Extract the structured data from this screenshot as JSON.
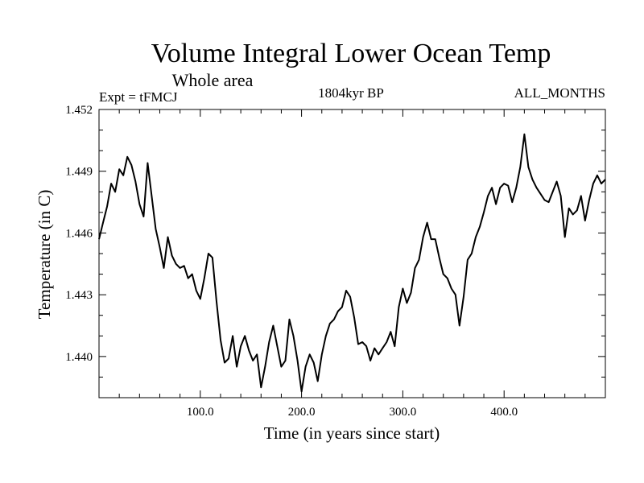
{
  "chart_data": {
    "type": "line",
    "title": "Volume Integral Lower Ocean Temp",
    "subtitle": "Whole area",
    "left_label": "Expt = tFMCJ",
    "center_label": "1804kyr BP",
    "right_label": "ALL_MONTHS",
    "xlabel": "Time (in years since start)",
    "ylabel": "Temperature (in C)",
    "xlim": [
      0,
      500
    ],
    "ylim": [
      1.438,
      1.452
    ],
    "x_ticks": [
      100,
      200,
      300,
      400
    ],
    "x_tick_labels": [
      "100.0",
      "200.0",
      "300.0",
      "400.0"
    ],
    "y_ticks": [
      1.44,
      1.443,
      1.446,
      1.449,
      1.452
    ],
    "y_tick_labels": [
      "1.440",
      "1.443",
      "1.446",
      "1.449",
      "1.452"
    ],
    "grid": false,
    "series": [
      {
        "name": "Volume Integral Lower Ocean Temp",
        "x": [
          0,
          4,
          8,
          12,
          16,
          20,
          24,
          28,
          32,
          36,
          40,
          44,
          48,
          52,
          56,
          60,
          64,
          68,
          72,
          76,
          80,
          84,
          88,
          92,
          96,
          100,
          104,
          108,
          112,
          116,
          120,
          124,
          128,
          132,
          136,
          140,
          144,
          148,
          152,
          156,
          160,
          164,
          168,
          172,
          176,
          180,
          184,
          188,
          192,
          196,
          200,
          204,
          208,
          212,
          216,
          220,
          224,
          228,
          232,
          236,
          240,
          244,
          248,
          252,
          256,
          260,
          264,
          268,
          272,
          276,
          280,
          284,
          288,
          292,
          296,
          300,
          304,
          308,
          312,
          316,
          320,
          324,
          328,
          332,
          336,
          340,
          344,
          348,
          352,
          356,
          360,
          364,
          368,
          372,
          376,
          380,
          384,
          388,
          392,
          396,
          400,
          404,
          408,
          412,
          416,
          420,
          424,
          428,
          432,
          436,
          440,
          444,
          448,
          452,
          456,
          460,
          464,
          468,
          472,
          476,
          480,
          484,
          488,
          492,
          496,
          500
        ],
        "values": [
          1.4457,
          1.4465,
          1.4473,
          1.4484,
          1.448,
          1.4491,
          1.4488,
          1.4497,
          1.4493,
          1.4485,
          1.4474,
          1.4468,
          1.4494,
          1.4478,
          1.4462,
          1.4453,
          1.4443,
          1.4458,
          1.4449,
          1.4445,
          1.4443,
          1.4444,
          1.4438,
          1.444,
          1.4432,
          1.4428,
          1.4438,
          1.445,
          1.4448,
          1.4427,
          1.4408,
          1.4397,
          1.4399,
          1.441,
          1.4395,
          1.4405,
          1.441,
          1.4403,
          1.4398,
          1.4401,
          1.4385,
          1.4395,
          1.4407,
          1.4415,
          1.4405,
          1.4395,
          1.4398,
          1.4418,
          1.441,
          1.4398,
          1.4383,
          1.4395,
          1.4401,
          1.4397,
          1.4388,
          1.4401,
          1.441,
          1.4416,
          1.4418,
          1.4422,
          1.4424,
          1.4432,
          1.4429,
          1.4419,
          1.4406,
          1.4407,
          1.4405,
          1.4398,
          1.4404,
          1.4401,
          1.4404,
          1.4407,
          1.4412,
          1.4405,
          1.4424,
          1.4433,
          1.4426,
          1.4431,
          1.4443,
          1.4447,
          1.4458,
          1.4465,
          1.4457,
          1.4457,
          1.4448,
          1.444,
          1.4438,
          1.4433,
          1.443,
          1.4415,
          1.4429,
          1.4447,
          1.445,
          1.4458,
          1.4463,
          1.447,
          1.4478,
          1.4482,
          1.4474,
          1.4482,
          1.4484,
          1.4483,
          1.4475,
          1.4482,
          1.4492,
          1.4508,
          1.4492,
          1.4486,
          1.4482,
          1.4479,
          1.4476,
          1.4475,
          1.448,
          1.4485,
          1.4478,
          1.4458,
          1.4472,
          1.4469,
          1.4471,
          1.4478,
          1.4466,
          1.4476,
          1.4484,
          1.4488,
          1.4484,
          1.4486
        ]
      }
    ]
  }
}
